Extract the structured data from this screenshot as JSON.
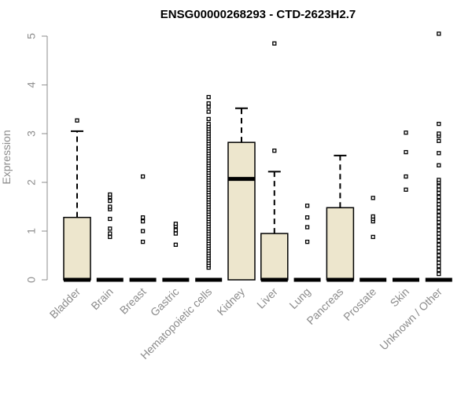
{
  "chart_data": {
    "type": "box",
    "title": "ENSG00000268293 - CTD-2623H2.7",
    "xlabel": "",
    "ylabel": "Expression",
    "ylim": [
      0,
      5
    ],
    "yticks": [
      "0",
      "1",
      "2",
      "3",
      "4",
      "5"
    ],
    "box_fill": "#ede6cd",
    "categories": [
      "Bladder",
      "Brain",
      "Breast",
      "Gastric",
      "Hematopoietic cells",
      "Kidney",
      "Liver",
      "Lung",
      "Pancreas",
      "Prostate",
      "Skin",
      "Unknown / Other"
    ],
    "boxes": [
      {
        "min": 0,
        "q1": 0,
        "median": 0,
        "q3": 1.28,
        "max": 3.05,
        "outliers": [
          3.27
        ]
      },
      {
        "min": 0,
        "q1": 0,
        "median": 0,
        "q3": 0,
        "max": 0,
        "outliers": [
          0.88,
          0.95,
          1.05,
          1.25,
          1.45,
          1.5,
          1.62,
          1.7,
          1.75
        ]
      },
      {
        "min": 0,
        "q1": 0,
        "median": 0,
        "q3": 0,
        "max": 0,
        "outliers": [
          0.78,
          1.0,
          1.2,
          1.28,
          2.12
        ]
      },
      {
        "min": 0,
        "q1": 0,
        "median": 0,
        "q3": 0,
        "max": 0,
        "outliers": [
          0.72,
          0.95,
          1.02,
          1.1,
          1.15
        ]
      },
      {
        "min": 0,
        "q1": 0,
        "median": 0,
        "q3": 0,
        "max": 0,
        "outliers": [
          0.25,
          0.3,
          0.35,
          0.4,
          0.45,
          0.5,
          0.55,
          0.6,
          0.65,
          0.7,
          0.75,
          0.8,
          0.85,
          0.9,
          0.95,
          1.0,
          1.05,
          1.1,
          1.15,
          1.2,
          1.25,
          1.3,
          1.35,
          1.4,
          1.45,
          1.5,
          1.55,
          1.6,
          1.65,
          1.7,
          1.75,
          1.8,
          1.85,
          1.9,
          1.95,
          2.0,
          2.05,
          2.1,
          2.15,
          2.2,
          2.25,
          2.3,
          2.35,
          2.4,
          2.45,
          2.5,
          2.55,
          2.6,
          2.65,
          2.7,
          2.75,
          2.8,
          2.85,
          2.9,
          2.95,
          3.0,
          3.05,
          3.1,
          3.15,
          3.2,
          3.3,
          3.45,
          3.55,
          3.62,
          3.75
        ]
      },
      {
        "min": 0,
        "q1": 0,
        "median": 2.07,
        "q3": 2.82,
        "max": 3.52,
        "outliers": []
      },
      {
        "min": 0,
        "q1": 0,
        "median": 0,
        "q3": 0.95,
        "max": 2.22,
        "outliers": [
          2.65,
          4.85
        ]
      },
      {
        "min": 0,
        "q1": 0,
        "median": 0,
        "q3": 0,
        "max": 0,
        "outliers": [
          0.78,
          1.08,
          1.28,
          1.52
        ]
      },
      {
        "min": 0,
        "q1": 0,
        "median": 0,
        "q3": 1.48,
        "max": 2.55,
        "outliers": []
      },
      {
        "min": 0,
        "q1": 0,
        "median": 0,
        "q3": 0,
        "max": 0,
        "outliers": [
          0.88,
          1.2,
          1.25,
          1.3,
          1.68
        ]
      },
      {
        "min": 0,
        "q1": 0,
        "median": 0,
        "q3": 0,
        "max": 0,
        "outliers": [
          1.85,
          2.12,
          2.62,
          3.02
        ]
      },
      {
        "min": 0,
        "q1": 0,
        "median": 0,
        "q3": 0,
        "max": 0,
        "outliers": [
          0.12,
          0.2,
          0.28,
          0.35,
          0.42,
          0.5,
          0.58,
          0.65,
          0.72,
          0.8,
          0.88,
          0.95,
          1.02,
          1.1,
          1.18,
          1.25,
          1.32,
          1.4,
          1.48,
          1.55,
          1.62,
          1.7,
          1.78,
          1.85,
          1.92,
          2.0,
          2.05,
          2.35,
          2.6,
          2.85,
          2.95,
          3.0,
          3.2,
          5.05
        ]
      }
    ]
  }
}
